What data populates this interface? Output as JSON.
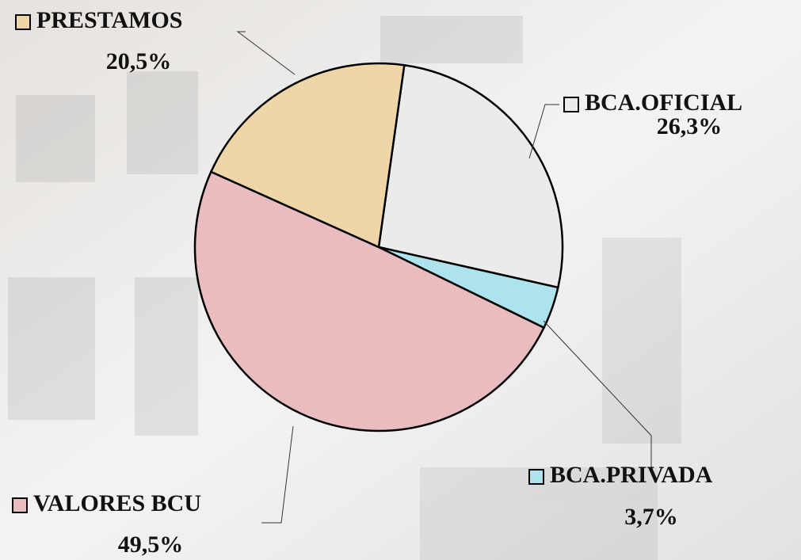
{
  "chart_data": {
    "type": "pie",
    "categories": [
      "BCA.OFICIAL",
      "BCA.PRIVADA",
      "VALORES BCU",
      "PRESTAMOS"
    ],
    "values": [
      26.3,
      3.7,
      49.5,
      20.5
    ],
    "value_labels": [
      "26,3%",
      "3,7%",
      "49,5%",
      "20,5%"
    ],
    "colors": [
      "#ebebeb",
      "#ade3ec",
      "#e9bcc0",
      "#efd6a6"
    ],
    "legend": true
  }
}
